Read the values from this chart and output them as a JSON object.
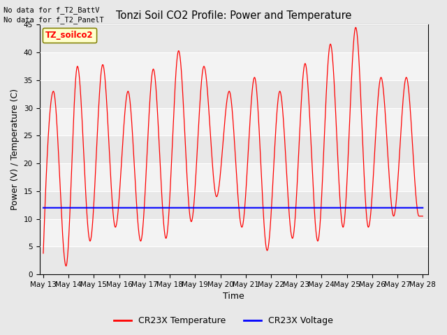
{
  "title": "Tonzi Soil CO2 Profile: Power and Temperature",
  "xlabel": "Time",
  "ylabel": "Power (V) / Temperature (C)",
  "annotations": [
    "No data for f_T2_BattV",
    "No data for f_T2_PanelT"
  ],
  "legend_label_box": "TZ_soilco2",
  "legend_items": [
    "CR23X Temperature",
    "CR23X Voltage"
  ],
  "legend_colors": [
    "red",
    "blue"
  ],
  "ylim": [
    0,
    45
  ],
  "yticks": [
    0,
    5,
    10,
    15,
    20,
    25,
    30,
    35,
    40,
    45
  ],
  "voltage_value": 12.0,
  "background_color": "#e8e8e8",
  "plot_bg_color": "#e8e8e8",
  "band_color": "#d8d8d8",
  "x_tick_labels": [
    "May 13",
    "May 14",
    "May 15",
    "May 16",
    "May 17",
    "May 18",
    "May 19",
    "May 20",
    "May 21",
    "May 22",
    "May 23",
    "May 24",
    "May 25",
    "May 26",
    "May 27",
    "May 28"
  ],
  "peaks": [
    {
      "day": 0.4,
      "val": 33.0
    },
    {
      "day": 0.9,
      "val": 1.5
    },
    {
      "day": 1.35,
      "val": 37.5
    },
    {
      "day": 1.85,
      "val": 6.0
    },
    {
      "day": 2.35,
      "val": 37.8
    },
    {
      "day": 2.85,
      "val": 8.5
    },
    {
      "day": 3.35,
      "val": 33.0
    },
    {
      "day": 3.85,
      "val": 6.0
    },
    {
      "day": 4.35,
      "val": 37.0
    },
    {
      "day": 4.85,
      "val": 6.5
    },
    {
      "day": 5.35,
      "val": 40.3
    },
    {
      "day": 5.85,
      "val": 9.5
    },
    {
      "day": 6.35,
      "val": 37.5
    },
    {
      "day": 6.85,
      "val": 14.0
    },
    {
      "day": 7.35,
      "val": 33.0
    },
    {
      "day": 7.85,
      "val": 8.5
    },
    {
      "day": 8.35,
      "val": 35.5
    },
    {
      "day": 8.85,
      "val": 4.3
    },
    {
      "day": 9.35,
      "val": 33.0
    },
    {
      "day": 9.85,
      "val": 6.5
    },
    {
      "day": 10.35,
      "val": 38.0
    },
    {
      "day": 10.85,
      "val": 6.0
    },
    {
      "day": 11.35,
      "val": 41.5
    },
    {
      "day": 11.85,
      "val": 8.5
    },
    {
      "day": 12.35,
      "val": 44.5
    },
    {
      "day": 12.85,
      "val": 8.5
    },
    {
      "day": 13.35,
      "val": 35.5
    },
    {
      "day": 13.85,
      "val": 10.5
    },
    {
      "day": 14.35,
      "val": 35.5
    },
    {
      "day": 14.85,
      "val": 10.5
    }
  ],
  "start_point": {
    "day": 0.0,
    "val": 3.8
  },
  "end_point": {
    "day": 15.0,
    "val": 10.5
  }
}
